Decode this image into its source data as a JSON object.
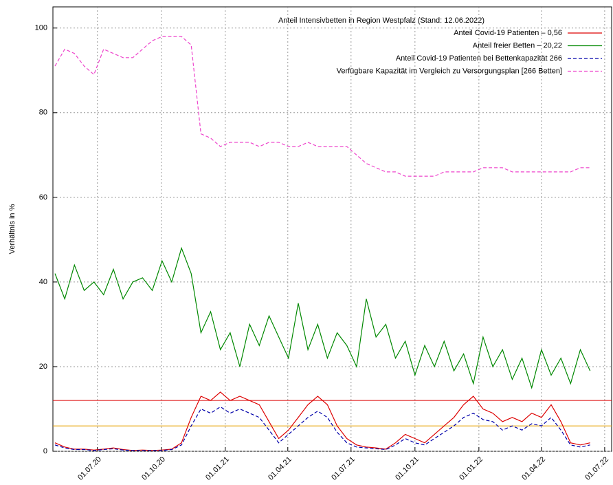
{
  "chart_data": {
    "type": "line",
    "legend_title": "Anteil Intensivbetten in Region Westpfalz (Stand: 12.06.2022)",
    "ylabel": "Verhältnis in %",
    "ylim": [
      0,
      105
    ],
    "yticks": [
      0,
      20,
      40,
      60,
      80,
      100
    ],
    "xlim": [
      "28.04.20",
      "11.07.22"
    ],
    "xticks": [
      "01.07.20",
      "01.10.20",
      "01.01.21",
      "01.04.21",
      "01.07.21",
      "01.10.21",
      "01.01.22",
      "01.04.22",
      "01.07.22"
    ],
    "grid": true,
    "legend": "top-right",
    "hlines": [
      {
        "value": 12,
        "color": "#dd0000"
      },
      {
        "value": 6,
        "color": "#e6a000"
      }
    ],
    "x": [
      "01.05.20",
      "15.05.20",
      "29.05.20",
      "12.06.20",
      "26.06.20",
      "10.07.20",
      "24.07.20",
      "07.08.20",
      "21.08.20",
      "04.09.20",
      "18.09.20",
      "02.10.20",
      "16.10.20",
      "30.10.20",
      "13.11.20",
      "27.11.20",
      "11.12.20",
      "25.12.20",
      "08.01.21",
      "22.01.21",
      "05.02.21",
      "19.02.21",
      "05.03.21",
      "19.03.21",
      "02.04.21",
      "16.04.21",
      "30.04.21",
      "14.05.21",
      "28.05.21",
      "11.06.21",
      "25.06.21",
      "09.07.21",
      "23.07.21",
      "06.08.21",
      "20.08.21",
      "03.09.21",
      "17.09.21",
      "01.10.21",
      "15.10.21",
      "29.10.21",
      "12.11.21",
      "26.11.21",
      "10.12.21",
      "24.12.21",
      "07.01.22",
      "21.01.22",
      "04.02.22",
      "18.02.22",
      "04.03.22",
      "18.03.22",
      "01.04.22",
      "15.04.22",
      "29.04.22",
      "13.05.22",
      "27.05.22",
      "10.06.22"
    ],
    "series": [
      {
        "name": "Anteil Covid-19 Patienten – 0,56",
        "color": "#dd0000",
        "dash": false,
        "values": [
          2,
          1,
          0.5,
          0.5,
          0.3,
          0.5,
          0.8,
          0.4,
          0.2,
          0.3,
          0.2,
          0.3,
          0.5,
          2,
          8,
          13,
          12,
          14,
          12,
          13,
          12,
          11,
          7,
          3,
          5,
          8,
          11,
          13,
          11,
          6,
          3,
          1.5,
          1,
          0.8,
          0.5,
          2,
          4,
          3,
          2,
          4,
          6,
          8,
          11,
          13,
          10,
          9,
          7,
          8,
          7,
          9,
          8,
          11,
          7,
          2,
          1.5,
          2
        ]
      },
      {
        "name": "Anteil freier Betten –  20,22",
        "color": "#008800",
        "dash": false,
        "values": [
          42,
          36,
          44,
          38,
          40,
          37,
          43,
          36,
          40,
          41,
          38,
          45,
          40,
          48,
          42,
          28,
          33,
          24,
          28,
          20,
          30,
          25,
          32,
          27,
          22,
          35,
          24,
          30,
          22,
          28,
          25,
          20,
          36,
          27,
          30,
          22,
          26,
          18,
          25,
          20,
          26,
          19,
          23,
          16,
          27,
          20,
          24,
          17,
          22,
          15,
          24,
          18,
          22,
          16,
          24,
          19
        ]
      },
      {
        "name": "Anteil Covid-19 Patienten bei Bettenkapazität 266",
        "color": "#0000aa",
        "dash": true,
        "values": [
          1.5,
          0.8,
          0.4,
          0.4,
          0.2,
          0.4,
          0.6,
          0.3,
          0.2,
          0.2,
          0.2,
          0.2,
          0.4,
          1.5,
          6,
          10,
          9,
          10.5,
          9,
          10,
          9,
          8,
          5,
          2,
          4,
          6,
          8,
          9.5,
          8,
          4.5,
          2,
          1,
          0.8,
          0.6,
          0.4,
          1.5,
          3,
          2,
          1.5,
          3,
          4.5,
          6,
          8,
          9,
          7.5,
          7,
          5,
          6,
          5,
          6.5,
          6,
          8,
          5,
          1.5,
          1,
          1.5
        ]
      },
      {
        "name": "Verfügbare Kapazität im Vergleich zu Versorgungsplan [266 Betten]",
        "color": "#ee44cc",
        "dash": true,
        "values": [
          91,
          95,
          94,
          91,
          89,
          95,
          94,
          93,
          93,
          95,
          97,
          98,
          98,
          98,
          96,
          75,
          74,
          72,
          73,
          73,
          73,
          72,
          73,
          73,
          72,
          72,
          73,
          72,
          72,
          72,
          72,
          70,
          68,
          67,
          66,
          66,
          65,
          65,
          65,
          65,
          66,
          66,
          66,
          66,
          67,
          67,
          67,
          66,
          66,
          66,
          66,
          66,
          66,
          66,
          67,
          67
        ]
      }
    ]
  }
}
